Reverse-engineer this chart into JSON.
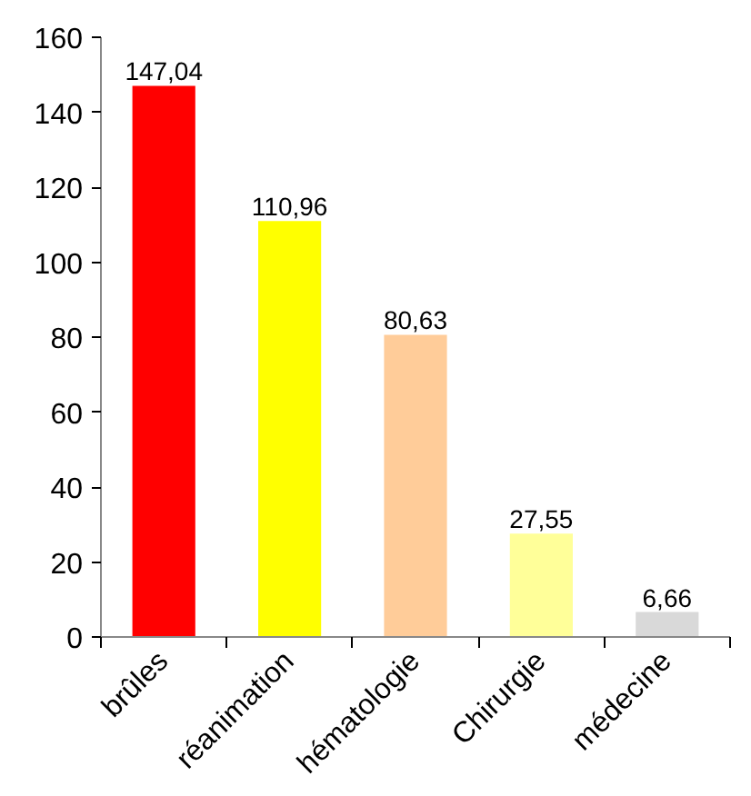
{
  "chart_data": {
    "type": "bar",
    "categories": [
      "brûles",
      "réanimation",
      "hématologie",
      "Chirurgie",
      "médecine"
    ],
    "values": [
      147.04,
      110.96,
      80.63,
      27.55,
      6.66
    ],
    "value_labels": [
      "147,04",
      "110,96",
      "80,63",
      "27,55",
      "6,66"
    ],
    "colors": [
      "#ff0000",
      "#ffff00",
      "#ffcc99",
      "#ffff99",
      "#d9d9d9"
    ],
    "ylim": [
      0,
      160
    ],
    "yticks": [
      0,
      20,
      40,
      60,
      80,
      100,
      120,
      140,
      160
    ],
    "grid": false
  }
}
